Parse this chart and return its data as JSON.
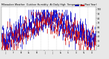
{
  "title": "Milwaukee Weather  Outdoor Humidity  At Daily High  Temperature  (Past Year)",
  "bg_color": "#e8e8e8",
  "plot_bg": "#ffffff",
  "blue_color": "#0000cc",
  "red_color": "#cc0000",
  "grid_color": "#999999",
  "ylim": [
    10,
    105
  ],
  "n_days": 365,
  "seed": 42,
  "title_fontsize": 2.5,
  "ytick_fontsize": 2.2,
  "xtick_fontsize": 1.8,
  "bar_linewidth": 0.55,
  "yticks": [
    20,
    30,
    40,
    50,
    60,
    70,
    80,
    90,
    100
  ],
  "month_labels": [
    "J",
    "F",
    "M",
    "A",
    "M",
    "J",
    "J",
    "A",
    "S",
    "O",
    "N",
    "D"
  ]
}
